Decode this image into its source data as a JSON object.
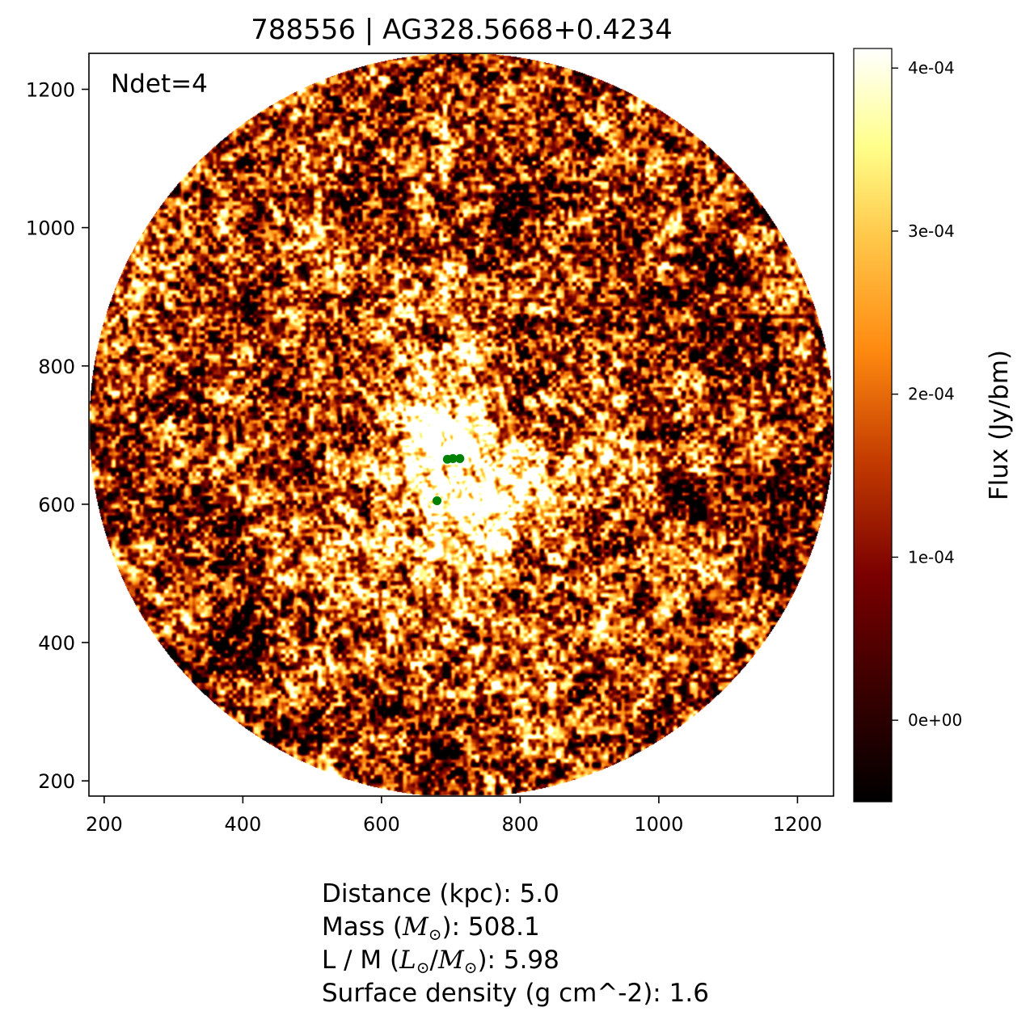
{
  "chart_data": {
    "type": "heatmap",
    "title": "788556 | AG328.5668+0.4234",
    "annotation": "Ndet=4",
    "x_ticks": [
      "200",
      "400",
      "600",
      "800",
      "1000",
      "1200"
    ],
    "y_ticks": [
      "200",
      "400",
      "600",
      "800",
      "1000",
      "1200"
    ],
    "xlim": [
      178,
      1252
    ],
    "ylim": [
      178,
      1252
    ],
    "map_center": [
      715,
      715
    ],
    "map_radius": 537,
    "colormap": "afmhot",
    "colorbar": {
      "label": "Flux (Jy/bm)",
      "range": [
        -5e-05,
        0.000412
      ],
      "ticks": [
        {
          "value": 0.0,
          "label": "0e+00"
        },
        {
          "value": 0.0001,
          "label": "1e-04"
        },
        {
          "value": 0.0002,
          "label": "2e-04"
        },
        {
          "value": 0.0003,
          "label": "3e-04"
        },
        {
          "value": 0.0004,
          "label": "4e-04"
        }
      ]
    },
    "detections": [
      {
        "x": 695,
        "y": 665
      },
      {
        "x": 703,
        "y": 666
      },
      {
        "x": 713,
        "y": 666
      },
      {
        "x": 680,
        "y": 605
      }
    ],
    "detection_color": "#008000",
    "bright_features": [
      {
        "x": 690,
        "y": 690,
        "sigma": 28,
        "strength": 1.0
      },
      {
        "x": 740,
        "y": 610,
        "sigma": 45,
        "strength": 0.75
      },
      {
        "x": 715,
        "y": 650,
        "sigma": 140,
        "strength": 0.42
      },
      {
        "x": 700,
        "y": 720,
        "sigma": 230,
        "strength": 0.18
      }
    ]
  },
  "info": {
    "distance_label": "Distance (kpc): ",
    "distance_value": "5.0",
    "mass_label": "Mass (",
    "mass_unit_symbol": "M",
    "mass_unit_sub": "⊙",
    "mass_tail": "): ",
    "mass_value": "508.1",
    "lm_label": "L / M (",
    "lm_l_symbol": "L",
    "lm_l_sub": "⊙",
    "lm_sep": "/",
    "lm_m_symbol": "M",
    "lm_m_sub": "⊙",
    "lm_tail": "): ",
    "lm_value": "5.98",
    "surface_label": "Surface density (g cm^-2): ",
    "surface_value": "1.6"
  }
}
